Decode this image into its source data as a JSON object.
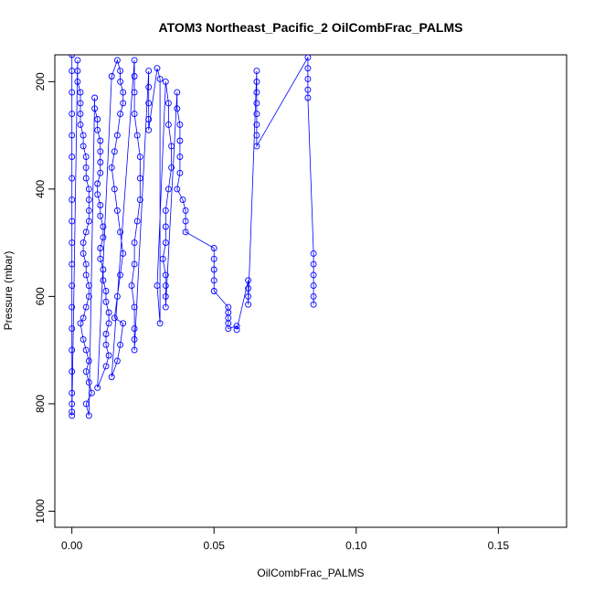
{
  "chart_data": {
    "type": "scatter",
    "title": "ATOM3 Northeast_Pacific_2 OilCombFrac_PALMS",
    "xlabel": "OilCombFrac_PALMS",
    "ylabel": "Pressure (mbar)",
    "xlim": [
      -0.006,
      0.174
    ],
    "ylim": [
      1030,
      150
    ],
    "y_inverted": true,
    "grid": false,
    "x_ticks": [
      {
        "value": 0.0,
        "label": "0.00"
      },
      {
        "value": 0.05,
        "label": "0.05"
      },
      {
        "value": 0.1,
        "label": "0.10"
      },
      {
        "value": 0.15,
        "label": "0.15"
      }
    ],
    "y_ticks": [
      {
        "value": 200,
        "label": "200"
      },
      {
        "value": 400,
        "label": "400"
      },
      {
        "value": 600,
        "label": "600"
      },
      {
        "value": 800,
        "label": "800"
      },
      {
        "value": 1000,
        "label": "1000"
      }
    ],
    "series": [
      {
        "color": "#0000ff",
        "marker": "open-circle",
        "connect": true,
        "points": [
          [
            0.0,
            150
          ],
          [
            0.0,
            180
          ],
          [
            0.0,
            220
          ],
          [
            0.0,
            260
          ],
          [
            0.0,
            300
          ],
          [
            0.0,
            340
          ],
          [
            0.0,
            380
          ],
          [
            0.0,
            420
          ],
          [
            0.0,
            460
          ],
          [
            0.0,
            500
          ],
          [
            0.0,
            540
          ],
          [
            0.0,
            580
          ],
          [
            0.0,
            620
          ],
          [
            0.0,
            660
          ],
          [
            0.0,
            700
          ],
          [
            0.0,
            740
          ],
          [
            0.0,
            780
          ],
          [
            0.0,
            800
          ],
          [
            0.0,
            815
          ],
          [
            0.0,
            822
          ],
          [
            0.002,
            160
          ],
          [
            0.002,
            180
          ],
          [
            0.002,
            200
          ],
          [
            0.003,
            220
          ],
          [
            0.003,
            240
          ],
          [
            0.003,
            260
          ],
          [
            0.003,
            280
          ],
          [
            0.004,
            300
          ],
          [
            0.004,
            320
          ],
          [
            0.005,
            340
          ],
          [
            0.005,
            360
          ],
          [
            0.005,
            380
          ],
          [
            0.006,
            400
          ],
          [
            0.006,
            420
          ],
          [
            0.006,
            440
          ],
          [
            0.006,
            460
          ],
          [
            0.005,
            480
          ],
          [
            0.004,
            500
          ],
          [
            0.004,
            520
          ],
          [
            0.005,
            540
          ],
          [
            0.005,
            560
          ],
          [
            0.006,
            580
          ],
          [
            0.006,
            600
          ],
          [
            0.005,
            620
          ],
          [
            0.004,
            640
          ],
          [
            0.003,
            650
          ],
          [
            0.004,
            680
          ],
          [
            0.005,
            700
          ],
          [
            0.006,
            720
          ],
          [
            0.005,
            740
          ],
          [
            0.006,
            760
          ],
          [
            0.007,
            780
          ],
          [
            0.005,
            800
          ],
          [
            0.006,
            822
          ],
          [
            0.008,
            230
          ],
          [
            0.008,
            250
          ],
          [
            0.009,
            270
          ],
          [
            0.009,
            290
          ],
          [
            0.01,
            310
          ],
          [
            0.01,
            330
          ],
          [
            0.01,
            350
          ],
          [
            0.01,
            370
          ],
          [
            0.009,
            390
          ],
          [
            0.009,
            410
          ],
          [
            0.01,
            430
          ],
          [
            0.01,
            450
          ],
          [
            0.011,
            470
          ],
          [
            0.011,
            490
          ],
          [
            0.01,
            510
          ],
          [
            0.01,
            530
          ],
          [
            0.011,
            550
          ],
          [
            0.011,
            570
          ],
          [
            0.012,
            590
          ],
          [
            0.012,
            610
          ],
          [
            0.013,
            630
          ],
          [
            0.013,
            650
          ],
          [
            0.012,
            670
          ],
          [
            0.012,
            690
          ],
          [
            0.013,
            710
          ],
          [
            0.012,
            730
          ],
          [
            0.009,
            770
          ],
          [
            0.014,
            190
          ],
          [
            0.016,
            160
          ],
          [
            0.017,
            180
          ],
          [
            0.017,
            200
          ],
          [
            0.018,
            220
          ],
          [
            0.018,
            240
          ],
          [
            0.017,
            260
          ],
          [
            0.016,
            300
          ],
          [
            0.015,
            330
          ],
          [
            0.014,
            360
          ],
          [
            0.015,
            400
          ],
          [
            0.016,
            440
          ],
          [
            0.017,
            480
          ],
          [
            0.018,
            520
          ],
          [
            0.017,
            560
          ],
          [
            0.016,
            600
          ],
          [
            0.015,
            640
          ],
          [
            0.018,
            650
          ],
          [
            0.017,
            690
          ],
          [
            0.016,
            720
          ],
          [
            0.014,
            750
          ],
          [
            0.022,
            160
          ],
          [
            0.022,
            190
          ],
          [
            0.022,
            220
          ],
          [
            0.022,
            260
          ],
          [
            0.023,
            300
          ],
          [
            0.024,
            340
          ],
          [
            0.024,
            380
          ],
          [
            0.024,
            420
          ],
          [
            0.023,
            460
          ],
          [
            0.022,
            500
          ],
          [
            0.022,
            540
          ],
          [
            0.021,
            580
          ],
          [
            0.022,
            620
          ],
          [
            0.022,
            660
          ],
          [
            0.022,
            680
          ],
          [
            0.022,
            700
          ],
          [
            0.027,
            180
          ],
          [
            0.027,
            210
          ],
          [
            0.027,
            240
          ],
          [
            0.027,
            270
          ],
          [
            0.027,
            290
          ],
          [
            0.03,
            175
          ],
          [
            0.031,
            195
          ],
          [
            0.031,
            650
          ],
          [
            0.03,
            580
          ],
          [
            0.033,
            200
          ],
          [
            0.034,
            240
          ],
          [
            0.034,
            280
          ],
          [
            0.035,
            320
          ],
          [
            0.035,
            360
          ],
          [
            0.034,
            400
          ],
          [
            0.033,
            440
          ],
          [
            0.033,
            470
          ],
          [
            0.033,
            500
          ],
          [
            0.032,
            530
          ],
          [
            0.033,
            560
          ],
          [
            0.033,
            580
          ],
          [
            0.033,
            600
          ],
          [
            0.033,
            620
          ],
          [
            0.037,
            220
          ],
          [
            0.037,
            250
          ],
          [
            0.038,
            280
          ],
          [
            0.038,
            310
          ],
          [
            0.038,
            340
          ],
          [
            0.038,
            370
          ],
          [
            0.037,
            400
          ],
          [
            0.039,
            420
          ],
          [
            0.04,
            440
          ],
          [
            0.04,
            460
          ],
          [
            0.04,
            480
          ],
          [
            0.05,
            510
          ],
          [
            0.05,
            530
          ],
          [
            0.05,
            550
          ],
          [
            0.05,
            570
          ],
          [
            0.05,
            590
          ],
          [
            0.055,
            620
          ],
          [
            0.055,
            630
          ],
          [
            0.055,
            640
          ],
          [
            0.055,
            650
          ],
          [
            0.055,
            660
          ],
          [
            0.058,
            655
          ],
          [
            0.058,
            662
          ],
          [
            0.062,
            570
          ],
          [
            0.062,
            585
          ],
          [
            0.062,
            600
          ],
          [
            0.062,
            615
          ],
          [
            0.065,
            180
          ],
          [
            0.065,
            200
          ],
          [
            0.065,
            220
          ],
          [
            0.065,
            240
          ],
          [
            0.065,
            260
          ],
          [
            0.065,
            280
          ],
          [
            0.065,
            300
          ],
          [
            0.065,
            320
          ],
          [
            0.083,
            155
          ],
          [
            0.083,
            175
          ],
          [
            0.083,
            195
          ],
          [
            0.083,
            215
          ],
          [
            0.083,
            230
          ],
          [
            0.085,
            520
          ],
          [
            0.085,
            540
          ],
          [
            0.085,
            560
          ],
          [
            0.085,
            580
          ],
          [
            0.085,
            600
          ],
          [
            0.085,
            615
          ]
        ]
      }
    ]
  }
}
